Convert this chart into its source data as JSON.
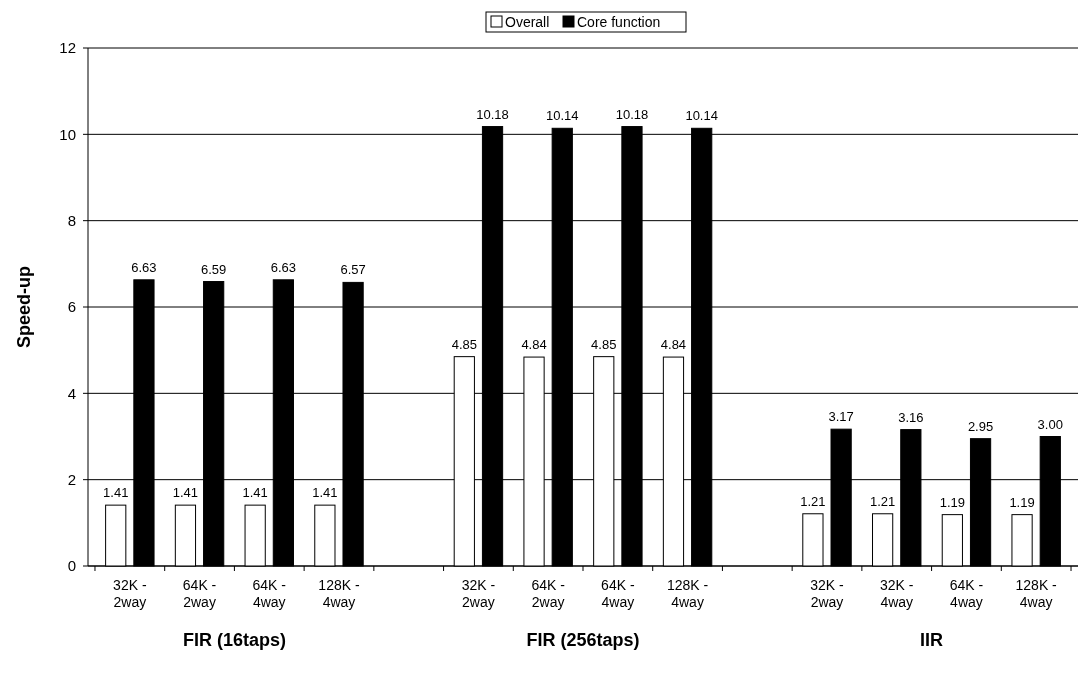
{
  "chart_data": {
    "type": "bar",
    "ylabel": "Speed-up",
    "categories": [
      "32K -\n2way",
      "64K -\n2way",
      "64K -\n4way",
      "128K -\n4way",
      null,
      "32K -\n2way",
      "64K -\n2way",
      "64K -\n4way",
      "128K -\n4way",
      null,
      "32K -\n2way",
      "32K -\n4way",
      "64K -\n4way",
      "128K -\n4way"
    ],
    "series": [
      {
        "name": "Overall",
        "color": "#ffffff",
        "values": [
          1.41,
          1.41,
          1.41,
          1.41,
          null,
          4.85,
          4.84,
          4.85,
          4.84,
          null,
          1.21,
          1.21,
          1.19,
          1.19
        ],
        "value_labels": [
          "1.41",
          "1.41",
          "1.41",
          "1.41",
          null,
          "4.85",
          "4.84",
          "4.85",
          "4.84",
          null,
          "1.21",
          "1.21",
          "1.19",
          "1.19"
        ]
      },
      {
        "name": "Core function",
        "color": "#000000",
        "values": [
          6.63,
          6.59,
          6.63,
          6.57,
          null,
          10.18,
          10.14,
          10.18,
          10.14,
          null,
          3.17,
          3.16,
          2.95,
          3.0
        ],
        "value_labels": [
          "6.63",
          "6.59",
          "6.63",
          "6.57",
          null,
          "10.18",
          "10.14",
          "10.18",
          "10.14",
          null,
          "3.17",
          "3.16",
          "2.95",
          "3.00"
        ]
      }
    ],
    "annotations": [
      "FIR (16taps)",
      "FIR (256taps)",
      "IIR"
    ],
    "ylim": [
      0,
      12
    ],
    "yticks": [
      0,
      2,
      4,
      6,
      8,
      10,
      12
    ],
    "grid": "y",
    "legend": "top"
  }
}
